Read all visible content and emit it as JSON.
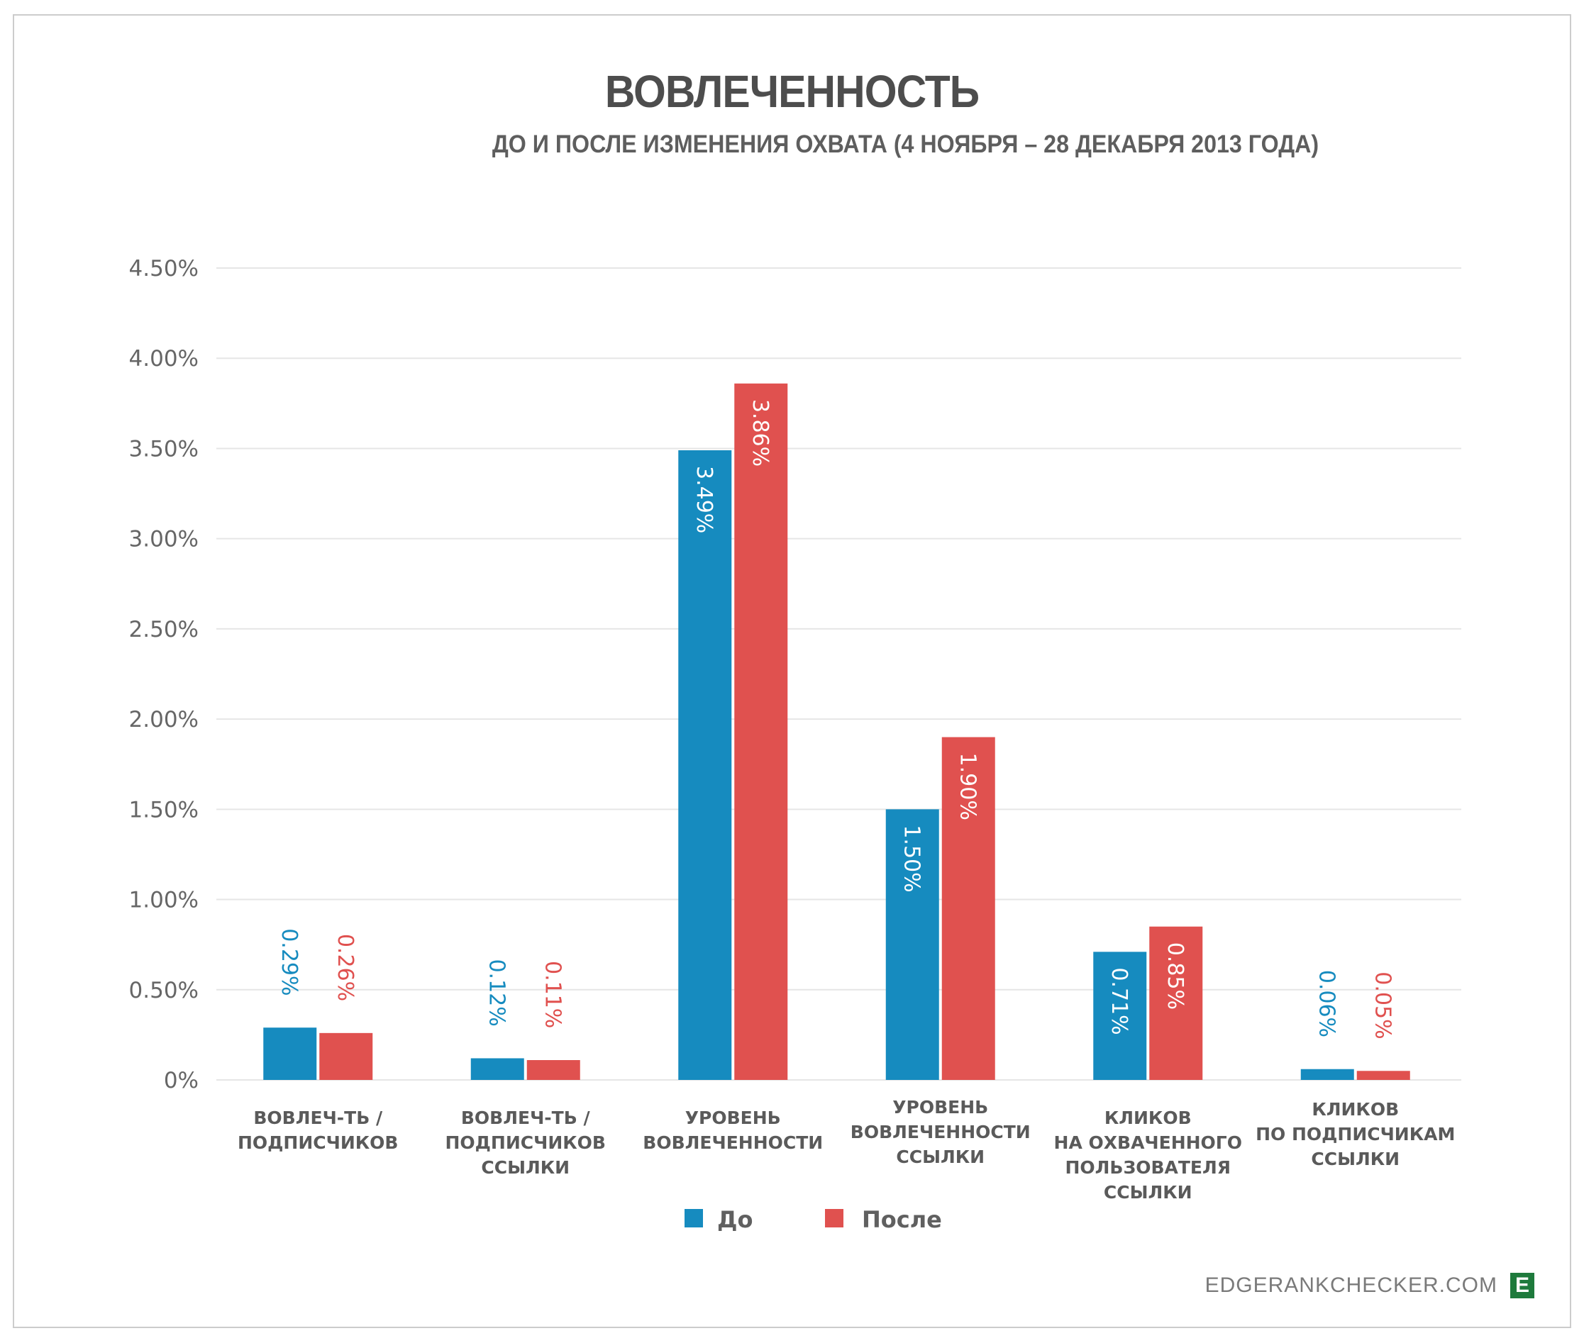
{
  "chart_data": {
    "type": "bar",
    "title": "ВОВЛЕЧЕННОСТЬ",
    "subtitle": "ДО И ПОСЛЕ ИЗМЕНЕНИЯ ОХВАТА (4 НОЯБРЯ – 28 ДЕКАБРЯ 2013 ГОДА)",
    "xlabel": "",
    "ylabel": "",
    "ylim": [
      0,
      4.5
    ],
    "yticks": [
      0,
      0.5,
      1.0,
      1.5,
      2.0,
      2.5,
      3.0,
      3.5,
      4.0,
      4.5
    ],
    "ytick_labels": [
      "0%",
      "0.50%",
      "1.00%",
      "1.50%",
      "2.00%",
      "2.50%",
      "3.00%",
      "3.50%",
      "4.00%",
      "4.50%"
    ],
    "grid": true,
    "categories": [
      [
        "ВОВЛЕЧ-ТЬ /",
        "ПОДПИСЧИКОВ"
      ],
      [
        "ВОВЛЕЧ-ТЬ /",
        "ПОДПИСЧИКОВ",
        "ССЫЛКИ"
      ],
      [
        "УРОВЕНЬ",
        "ВОВЛЕЧЕННОСТИ"
      ],
      [
        "УРОВЕНЬ",
        "ВОВЛЕЧЕННОСТИ",
        "ССЫЛКИ"
      ],
      [
        "КЛИКОВ",
        "НА ОХВАЧЕННОГО",
        "ПОЛЬЗОВАТЕЛЯ",
        "ССЫЛКИ"
      ],
      [
        "КЛИКОВ",
        "ПО ПОДПИСЧИКАМ",
        "ССЫЛКИ"
      ]
    ],
    "series": [
      {
        "name": "До",
        "color": "#168bbf",
        "values": [
          0.29,
          0.12,
          3.49,
          1.5,
          0.71,
          0.06
        ],
        "labels": [
          "0.29%",
          "0.12%",
          "3.49%",
          "1.50%",
          "0.71%",
          "0.06%"
        ]
      },
      {
        "name": "После",
        "color": "#e0514f",
        "values": [
          0.26,
          0.11,
          3.86,
          1.9,
          0.85,
          0.05
        ],
        "labels": [
          "0.26%",
          "0.11%",
          "3.86%",
          "1.90%",
          "0.85%",
          "0.05%"
        ]
      }
    ],
    "legend": {
      "position": "bottom-center"
    }
  },
  "branding": {
    "site": "EDGERANKCHECKER.COM",
    "logo_letter": "E",
    "logo_color": "#1e7a3c"
  }
}
